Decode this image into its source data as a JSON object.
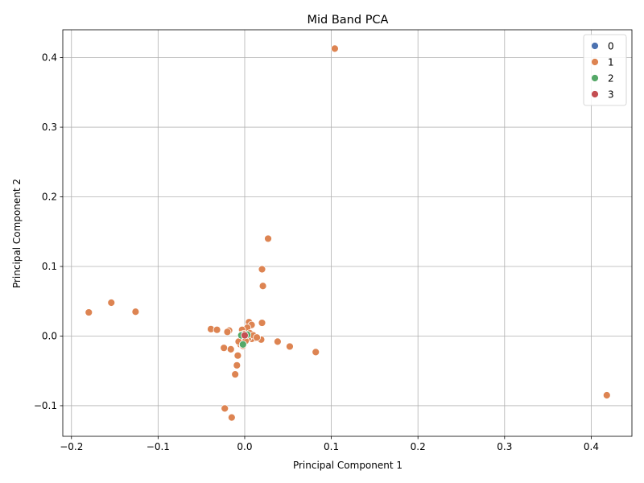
{
  "chart_data": {
    "type": "scatter",
    "title": "Mid Band PCA",
    "xlabel": "Principal Component 1",
    "ylabel": "Principal Component 2",
    "xlim": [
      -0.21,
      0.447
    ],
    "ylim": [
      -0.144,
      0.44
    ],
    "xticks": [
      -0.2,
      -0.1,
      0.0,
      0.1,
      0.2,
      0.3,
      0.4
    ],
    "yticks": [
      -0.1,
      0.0,
      0.1,
      0.2,
      0.3,
      0.4
    ],
    "xtick_labels": [
      "−0.2",
      "−0.1",
      "0.0",
      "0.1",
      "0.2",
      "0.3",
      "0.4"
    ],
    "ytick_labels": [
      "−0.1",
      "0.0",
      "0.1",
      "0.2",
      "0.3",
      "0.4"
    ],
    "grid": true,
    "legend_position": "top-right",
    "series": [
      {
        "name": "0",
        "color": "#4c72b0",
        "points": []
      },
      {
        "name": "1",
        "color": "#dd8452",
        "points": [
          [
            0.104,
            0.413
          ],
          [
            0.418,
            -0.085
          ],
          [
            0.027,
            0.14
          ],
          [
            0.02,
            0.096
          ],
          [
            0.021,
            0.072
          ],
          [
            -0.18,
            0.034
          ],
          [
            -0.154,
            0.048
          ],
          [
            -0.126,
            0.035
          ],
          [
            -0.039,
            0.01
          ],
          [
            -0.032,
            0.009
          ],
          [
            -0.018,
            0.008
          ],
          [
            -0.02,
            0.006
          ],
          [
            0.02,
            0.019
          ],
          [
            0.005,
            0.02
          ],
          [
            0.008,
            0.016
          ],
          [
            0.038,
            -0.008
          ],
          [
            0.052,
            -0.015
          ],
          [
            0.082,
            -0.023
          ],
          [
            -0.024,
            -0.017
          ],
          [
            -0.016,
            -0.019
          ],
          [
            -0.008,
            -0.028
          ],
          [
            -0.009,
            -0.042
          ],
          [
            -0.011,
            -0.055
          ],
          [
            -0.023,
            -0.104
          ],
          [
            -0.015,
            -0.117
          ],
          [
            0.019,
            -0.005
          ],
          [
            0.012,
            -0.003
          ],
          [
            0.008,
            -0.004
          ],
          [
            -0.005,
            -0.012
          ],
          [
            -0.002,
            -0.014
          ],
          [
            -0.007,
            -0.008
          ],
          [
            0.003,
            0.012
          ],
          [
            -0.003,
            0.009
          ],
          [
            0.006,
            0.004
          ],
          [
            0.004,
            -0.003
          ],
          [
            -0.001,
            0.003
          ],
          [
            0.01,
            0.001
          ],
          [
            0.014,
            -0.002
          ],
          [
            -0.004,
            0.002
          ],
          [
            0.001,
            -0.007
          ]
        ]
      },
      {
        "name": "2",
        "color": "#55a868",
        "points": [
          [
            -0.002,
            -0.012
          ],
          [
            -0.004,
            0.001
          ],
          [
            0.003,
            0.002
          ]
        ]
      },
      {
        "name": "3",
        "color": "#c44e52",
        "points": [
          [
            0.0,
            0.001
          ]
        ]
      }
    ]
  }
}
